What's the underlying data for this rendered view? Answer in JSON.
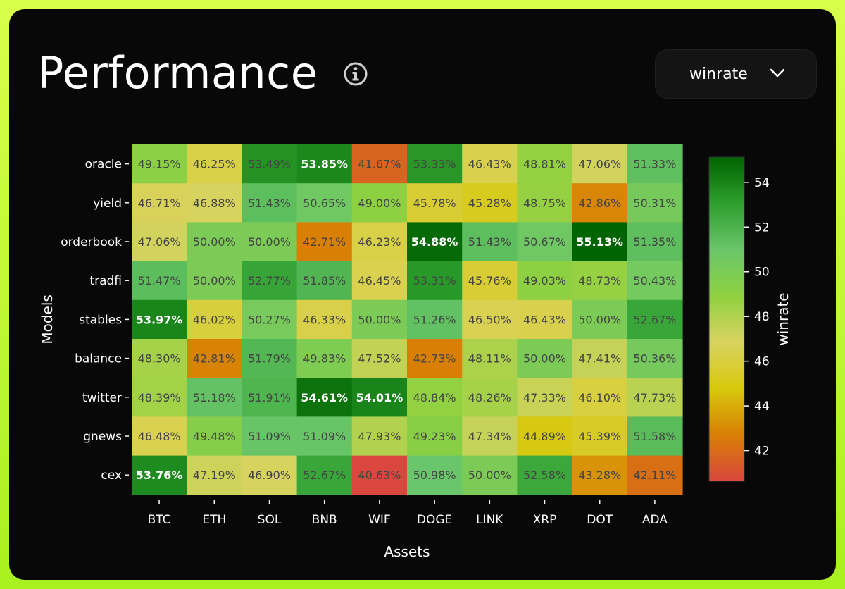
{
  "header": {
    "title": "Performance",
    "metric_select": {
      "value": "winrate"
    }
  },
  "icons": {
    "info": "info-circle-icon",
    "dropdown": "chevron-down-icon"
  },
  "chart_data": {
    "type": "heatmap",
    "xlabel": "Assets",
    "ylabel": "Models",
    "colorbar_label": "winrate",
    "x": [
      "BTC",
      "ETH",
      "SOL",
      "BNB",
      "WIF",
      "DOGE",
      "LINK",
      "XRP",
      "DOT",
      "ADA"
    ],
    "y": [
      "oracle",
      "yield",
      "orderbook",
      "tradfi",
      "stables",
      "balance",
      "twitter",
      "gnews",
      "cex"
    ],
    "values": [
      [
        49.15,
        46.25,
        53.49,
        53.85,
        41.67,
        53.33,
        46.43,
        48.81,
        47.06,
        51.33
      ],
      [
        46.71,
        46.88,
        51.43,
        50.65,
        49.0,
        45.78,
        45.28,
        48.75,
        42.86,
        50.31
      ],
      [
        47.06,
        50.0,
        50.0,
        42.71,
        46.23,
        54.88,
        51.43,
        50.67,
        55.13,
        51.35
      ],
      [
        51.47,
        50.0,
        52.77,
        51.85,
        46.45,
        53.31,
        45.76,
        49.03,
        48.73,
        50.43
      ],
      [
        53.97,
        46.02,
        50.27,
        46.33,
        50.0,
        51.26,
        46.5,
        46.43,
        50.0,
        52.67
      ],
      [
        48.3,
        42.81,
        51.79,
        49.83,
        47.52,
        42.73,
        48.11,
        50.0,
        47.41,
        50.36
      ],
      [
        48.39,
        51.18,
        51.91,
        54.61,
        54.01,
        48.84,
        48.26,
        47.33,
        46.1,
        47.73
      ],
      [
        46.48,
        49.48,
        51.09,
        51.09,
        47.93,
        49.23,
        47.34,
        44.89,
        45.39,
        51.58
      ],
      [
        53.76,
        47.19,
        46.9,
        52.67,
        40.63,
        50.98,
        50.0,
        52.58,
        43.28,
        42.11
      ]
    ],
    "value_format": "percent",
    "color_range": [
      40.63,
      55.13
    ],
    "colorbar_ticks": [
      42,
      44,
      46,
      48,
      50,
      52,
      54
    ],
    "colorscale": [
      "#d9473f",
      "#d97f04",
      "#d7c80c",
      "#d9d35f",
      "#8fd140",
      "#6ac66a",
      "#2e9f2e",
      "#006400"
    ]
  }
}
